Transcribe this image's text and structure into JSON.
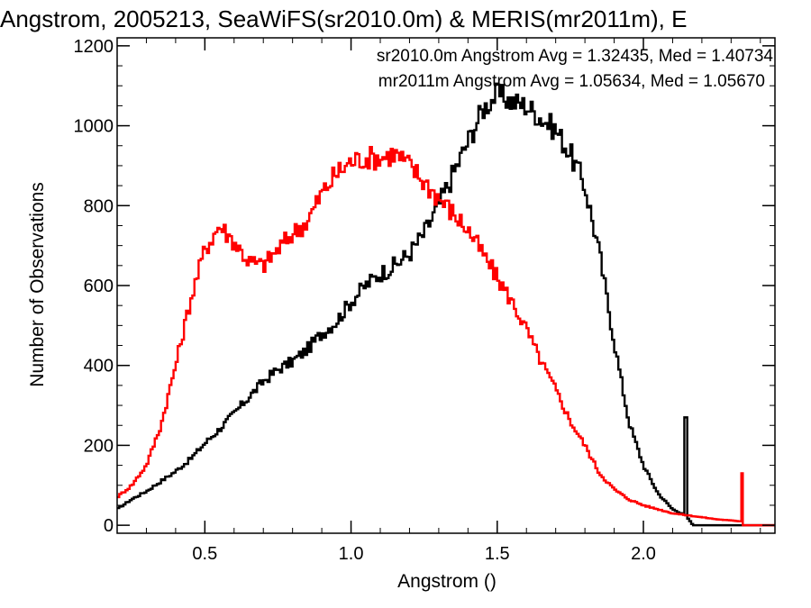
{
  "chart_data": {
    "type": "line",
    "title": "Angstrom, 2005213, SeaWiFS(sr2010.0m) & MERIS(mr2011m), E",
    "xlabel": "Angstrom ()",
    "ylabel": "Number of Observations",
    "xlim": [
      0.2,
      2.45
    ],
    "ylim": [
      -20,
      1220
    ],
    "xticks": [
      {
        "v": 0.5,
        "label": "0.5"
      },
      {
        "v": 1.0,
        "label": "1.0"
      },
      {
        "v": 1.5,
        "label": "1.5"
      },
      {
        "v": 2.0,
        "label": "2.0"
      }
    ],
    "yticks": [
      {
        "v": 0,
        "label": "0"
      },
      {
        "v": 200,
        "label": "200"
      },
      {
        "v": 400,
        "label": "400"
      },
      {
        "v": 600,
        "label": "600"
      },
      {
        "v": 800,
        "label": "800"
      },
      {
        "v": 1000,
        "label": "1000"
      },
      {
        "v": 1200,
        "label": "1200"
      }
    ],
    "legend_placement": "top-right",
    "annotations": [
      {
        "text": "sr2010.0m Angstrom Avg = 1.32435, Med = 1.40734",
        "color": "#000000"
      },
      {
        "text": "mr2011m Angstrom Avg = 1.05634, Med = 1.05670",
        "color": "#ff0000"
      }
    ],
    "series": [
      {
        "color": "#000000",
        "points": [
          [
            0.2,
            40
          ],
          [
            0.25,
            65
          ],
          [
            0.3,
            85
          ],
          [
            0.35,
            110
          ],
          [
            0.4,
            135
          ],
          [
            0.45,
            165
          ],
          [
            0.5,
            205
          ],
          [
            0.55,
            240
          ],
          [
            0.6,
            280
          ],
          [
            0.65,
            320
          ],
          [
            0.7,
            360
          ],
          [
            0.75,
            390
          ],
          [
            0.8,
            410
          ],
          [
            0.85,
            440
          ],
          [
            0.9,
            480
          ],
          [
            0.95,
            510
          ],
          [
            1.0,
            560
          ],
          [
            1.05,
            600
          ],
          [
            1.1,
            630
          ],
          [
            1.15,
            650
          ],
          [
            1.2,
            680
          ],
          [
            1.25,
            730
          ],
          [
            1.3,
            800
          ],
          [
            1.35,
            880
          ],
          [
            1.4,
            960
          ],
          [
            1.45,
            1040
          ],
          [
            1.5,
            1080
          ],
          [
            1.55,
            1060
          ],
          [
            1.6,
            1050
          ],
          [
            1.65,
            1020
          ],
          [
            1.7,
            990
          ],
          [
            1.75,
            930
          ],
          [
            1.8,
            850
          ],
          [
            1.85,
            680
          ],
          [
            1.9,
            460
          ],
          [
            1.95,
            260
          ],
          [
            2.0,
            150
          ],
          [
            2.05,
            80
          ],
          [
            2.1,
            40
          ],
          [
            2.13,
            30
          ],
          [
            2.14,
            270
          ],
          [
            2.15,
            20
          ],
          [
            2.17,
            0
          ],
          [
            2.45,
            0
          ]
        ]
      },
      {
        "color": "#ff0000",
        "points": [
          [
            0.2,
            70
          ],
          [
            0.25,
            100
          ],
          [
            0.3,
            150
          ],
          [
            0.35,
            250
          ],
          [
            0.4,
            400
          ],
          [
            0.45,
            560
          ],
          [
            0.5,
            690
          ],
          [
            0.55,
            750
          ],
          [
            0.6,
            710
          ],
          [
            0.65,
            660
          ],
          [
            0.7,
            650
          ],
          [
            0.75,
            690
          ],
          [
            0.8,
            730
          ],
          [
            0.85,
            760
          ],
          [
            0.9,
            830
          ],
          [
            0.95,
            880
          ],
          [
            1.0,
            910
          ],
          [
            1.05,
            920
          ],
          [
            1.1,
            920
          ],
          [
            1.15,
            930
          ],
          [
            1.2,
            900
          ],
          [
            1.25,
            860
          ],
          [
            1.3,
            820
          ],
          [
            1.35,
            780
          ],
          [
            1.4,
            740
          ],
          [
            1.45,
            680
          ],
          [
            1.5,
            620
          ],
          [
            1.55,
            560
          ],
          [
            1.6,
            490
          ],
          [
            1.65,
            410
          ],
          [
            1.7,
            340
          ],
          [
            1.75,
            260
          ],
          [
            1.8,
            200
          ],
          [
            1.85,
            130
          ],
          [
            1.9,
            90
          ],
          [
            1.95,
            65
          ],
          [
            2.0,
            50
          ],
          [
            2.05,
            40
          ],
          [
            2.1,
            30
          ],
          [
            2.15,
            25
          ],
          [
            2.2,
            20
          ],
          [
            2.25,
            15
          ],
          [
            2.3,
            12
          ],
          [
            2.33,
            10
          ],
          [
            2.335,
            130
          ],
          [
            2.34,
            0
          ],
          [
            2.45,
            0
          ]
        ]
      }
    ]
  }
}
